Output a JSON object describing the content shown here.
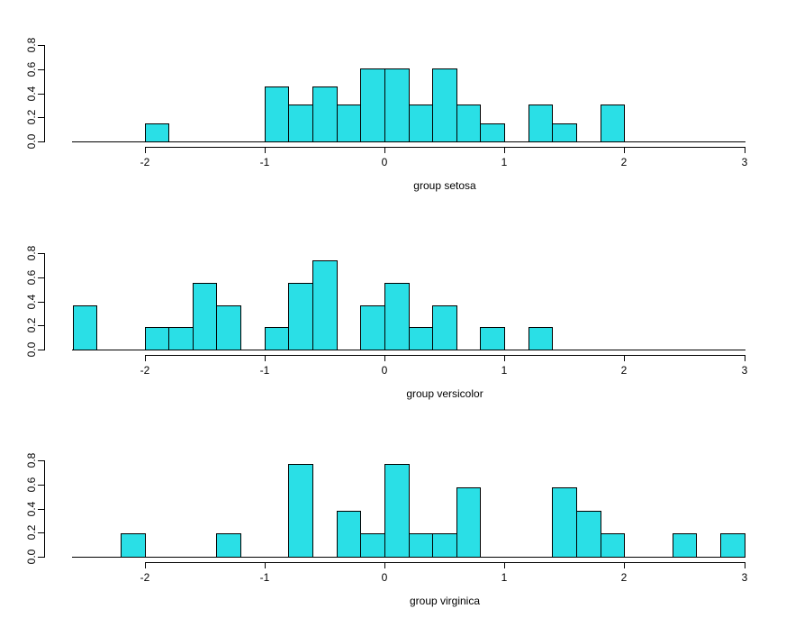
{
  "figure": {
    "background": "#ffffff",
    "bar_fill": "#2adfe6",
    "bar_stroke": "#000000",
    "axis_color": "#000000",
    "text_color": "#000000"
  },
  "chart_data": [
    {
      "type": "bar",
      "subtype": "histogram-density",
      "title": "",
      "xlabel": "group setosa",
      "ylabel": "",
      "xlim": [
        -2.6,
        3.05
      ],
      "ylim": [
        0,
        0.8
      ],
      "bin_width": 0.2,
      "grid": false,
      "legend": false,
      "x_ticks": [
        -2,
        -1,
        0,
        1,
        2,
        3
      ],
      "y_ticks": [
        "0.0",
        "0.2",
        "0.4",
        "0.6",
        "0.8"
      ],
      "bars": [
        {
          "x0": -2.0,
          "x1": -1.8,
          "density": 0.152
        },
        {
          "x0": -1.0,
          "x1": -0.8,
          "density": 0.455
        },
        {
          "x0": -0.8,
          "x1": -0.6,
          "density": 0.303
        },
        {
          "x0": -0.6,
          "x1": -0.4,
          "density": 0.455
        },
        {
          "x0": -0.4,
          "x1": -0.2,
          "density": 0.303
        },
        {
          "x0": -0.2,
          "x1": 0.0,
          "density": 0.606
        },
        {
          "x0": 0.0,
          "x1": 0.2,
          "density": 0.606
        },
        {
          "x0": 0.2,
          "x1": 0.4,
          "density": 0.303
        },
        {
          "x0": 0.4,
          "x1": 0.6,
          "density": 0.606
        },
        {
          "x0": 0.6,
          "x1": 0.8,
          "density": 0.303
        },
        {
          "x0": 0.8,
          "x1": 1.0,
          "density": 0.152
        },
        {
          "x0": 1.2,
          "x1": 1.4,
          "density": 0.303
        },
        {
          "x0": 1.4,
          "x1": 1.6,
          "density": 0.152
        },
        {
          "x0": 1.8,
          "x1": 2.0,
          "density": 0.303
        }
      ]
    },
    {
      "type": "bar",
      "subtype": "histogram-density",
      "title": "",
      "xlabel": "group versicolor",
      "ylabel": "",
      "xlim": [
        -2.6,
        3.05
      ],
      "ylim": [
        0,
        0.8
      ],
      "bin_width": 0.2,
      "grid": false,
      "legend": false,
      "x_ticks": [
        -2,
        -1,
        0,
        1,
        2,
        3
      ],
      "y_ticks": [
        "0.0",
        "0.2",
        "0.4",
        "0.6",
        "0.8"
      ],
      "bars": [
        {
          "x0": -2.6,
          "x1": -2.4,
          "density": 0.37
        },
        {
          "x0": -2.0,
          "x1": -1.8,
          "density": 0.185
        },
        {
          "x0": -1.8,
          "x1": -1.6,
          "density": 0.185
        },
        {
          "x0": -1.6,
          "x1": -1.4,
          "density": 0.556
        },
        {
          "x0": -1.4,
          "x1": -1.2,
          "density": 0.37
        },
        {
          "x0": -1.0,
          "x1": -0.8,
          "density": 0.185
        },
        {
          "x0": -0.8,
          "x1": -0.6,
          "density": 0.556
        },
        {
          "x0": -0.6,
          "x1": -0.4,
          "density": 0.741
        },
        {
          "x0": -0.2,
          "x1": 0.0,
          "density": 0.37
        },
        {
          "x0": 0.0,
          "x1": 0.2,
          "density": 0.556
        },
        {
          "x0": 0.2,
          "x1": 0.4,
          "density": 0.185
        },
        {
          "x0": 0.4,
          "x1": 0.6,
          "density": 0.37
        },
        {
          "x0": 0.8,
          "x1": 1.0,
          "density": 0.185
        },
        {
          "x0": 1.2,
          "x1": 1.4,
          "density": 0.185
        }
      ]
    },
    {
      "type": "bar",
      "subtype": "histogram-density",
      "title": "",
      "xlabel": "group virginica",
      "ylabel": "",
      "xlim": [
        -2.6,
        3.05
      ],
      "ylim": [
        0,
        0.8
      ],
      "bin_width": 0.2,
      "grid": false,
      "legend": false,
      "x_ticks": [
        -2,
        -1,
        0,
        1,
        2,
        3
      ],
      "y_ticks": [
        "0.0",
        "0.2",
        "0.4",
        "0.6",
        "0.8"
      ],
      "bars": [
        {
          "x0": -2.2,
          "x1": -2.0,
          "density": 0.192
        },
        {
          "x0": -1.4,
          "x1": -1.2,
          "density": 0.192
        },
        {
          "x0": -0.8,
          "x1": -0.6,
          "density": 0.769
        },
        {
          "x0": -0.4,
          "x1": -0.2,
          "density": 0.385
        },
        {
          "x0": -0.2,
          "x1": 0.0,
          "density": 0.192
        },
        {
          "x0": 0.0,
          "x1": 0.2,
          "density": 0.769
        },
        {
          "x0": 0.2,
          "x1": 0.4,
          "density": 0.192
        },
        {
          "x0": 0.4,
          "x1": 0.6,
          "density": 0.192
        },
        {
          "x0": 0.6,
          "x1": 0.8,
          "density": 0.577
        },
        {
          "x0": 1.4,
          "x1": 1.6,
          "density": 0.577
        },
        {
          "x0": 1.6,
          "x1": 1.8,
          "density": 0.385
        },
        {
          "x0": 1.8,
          "x1": 2.0,
          "density": 0.192
        },
        {
          "x0": 2.4,
          "x1": 2.6,
          "density": 0.192
        },
        {
          "x0": 2.8,
          "x1": 3.0,
          "density": 0.192
        }
      ]
    }
  ]
}
